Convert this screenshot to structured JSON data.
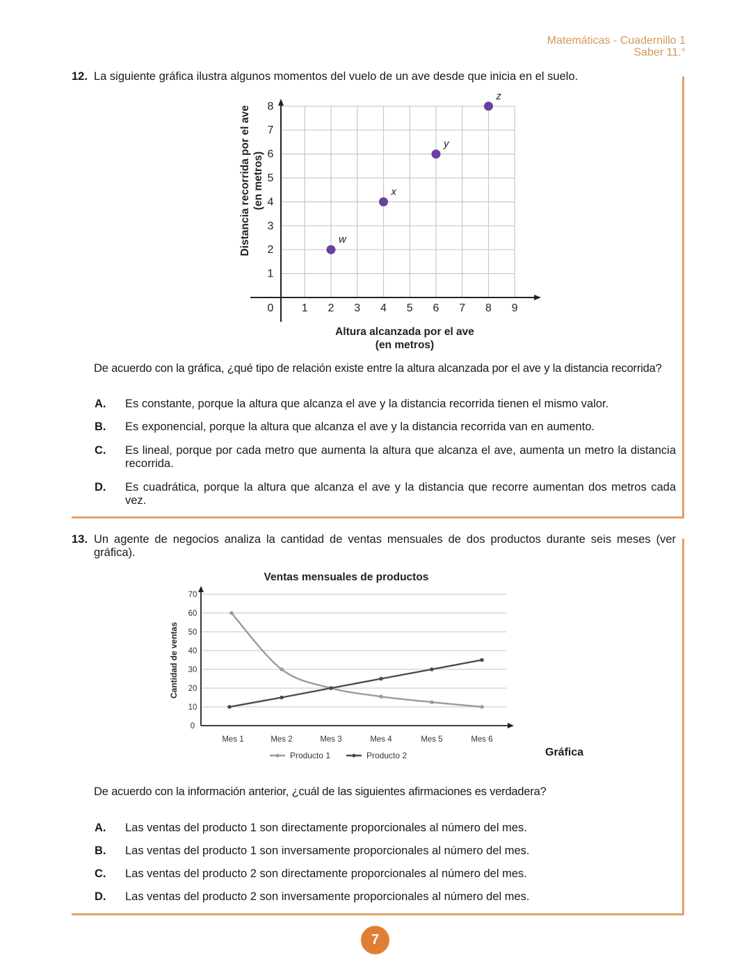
{
  "header": {
    "line1": "Matemáticas - Cuadernillo 1",
    "line2": "Saber 11.°"
  },
  "accent_color": "#e0a068",
  "q12": {
    "number": "12.",
    "text": "La siguiente gráfica ilustra algunos momentos del vuelo de un ave desde que inicia en el suelo.",
    "prompt": "De acuerdo con la gráfica, ¿qué tipo de relación existe entre la altura alcanzada por el ave y la distancia recorrida?",
    "options": [
      {
        "letter": "A.",
        "text": "Es constante, porque la altura que alcanza el ave y la distancia recorrida tienen el mismo valor."
      },
      {
        "letter": "B.",
        "text": "Es exponencial, porque la altura que alcanza el ave y la distancia recorrida van en aumento."
      },
      {
        "letter": "C.",
        "text": "Es lineal, porque por cada metro que aumenta la altura que alcanza el ave, aumenta un metro la distancia recorrida."
      },
      {
        "letter": "D.",
        "text": "Es cuadrática, porque la altura que alcanza el ave y la distancia que recorre aumentan dos metros cada vez."
      }
    ]
  },
  "q13": {
    "number": "13.",
    "text": "Un agente de negocios analiza la cantidad de ventas mensuales de dos productos durante seis meses (ver gráfica).",
    "caption": "Gráfica",
    "prompt": "De acuerdo con la información anterior, ¿cuál de las siguientes afirmaciones es verdadera?",
    "options": [
      {
        "letter": "A.",
        "text": "Las ventas del producto 1 son directamente proporcionales al número del mes."
      },
      {
        "letter": "B.",
        "text": "Las ventas del producto 1 son inversamente proporcionales al número del mes."
      },
      {
        "letter": "C.",
        "text": "Las ventas del producto 2 son directamente proporcionales al número del mes."
      },
      {
        "letter": "D.",
        "text": "Las ventas del producto 2 son inversamente proporcionales al número del mes."
      }
    ]
  },
  "page_number": "7",
  "chart_data": [
    {
      "type": "scatter",
      "xlabel": "Altura alcanzada por el ave\n(en metros)",
      "xlabel_lines": [
        "Altura alcanzada por el ave",
        "(en metros)"
      ],
      "ylabel_lines": [
        "Distancia recorrida por el ave",
        "(en metros)"
      ],
      "xlim": [
        0,
        9
      ],
      "ylim": [
        0,
        8
      ],
      "x_ticks": [
        "0",
        "1",
        "2",
        "3",
        "4",
        "5",
        "6",
        "7",
        "8",
        "9"
      ],
      "y_ticks": [
        "1",
        "2",
        "3",
        "4",
        "5",
        "6",
        "7",
        "8"
      ],
      "grid": true,
      "point_color": "#6b3fa0",
      "points": [
        {
          "label": "w",
          "x": 2,
          "y": 2
        },
        {
          "label": "x",
          "x": 4,
          "y": 4
        },
        {
          "label": "y",
          "x": 6,
          "y": 6
        },
        {
          "label": "z",
          "x": 8,
          "y": 8
        }
      ]
    },
    {
      "type": "line",
      "title": "Ventas mensuales de productos",
      "ylabel": "Cantidad de ventas",
      "ylim": [
        0,
        70
      ],
      "y_ticks": [
        "0",
        "10",
        "20",
        "30",
        "40",
        "50",
        "60",
        "70"
      ],
      "grid": true,
      "legend": "bottom",
      "categories": [
        "Mes 1",
        "Mes 2",
        "Mes 3",
        "Mes 4",
        "Mes 5",
        "Mes 6"
      ],
      "series": [
        {
          "name": "Producto 1",
          "color": "#9a9a9a",
          "values": [
            60,
            30,
            20,
            15.5,
            12.5,
            10
          ]
        },
        {
          "name": "Producto 2",
          "color": "#4a4a4a",
          "values": [
            10,
            15,
            20,
            25,
            30,
            35
          ]
        }
      ]
    }
  ]
}
